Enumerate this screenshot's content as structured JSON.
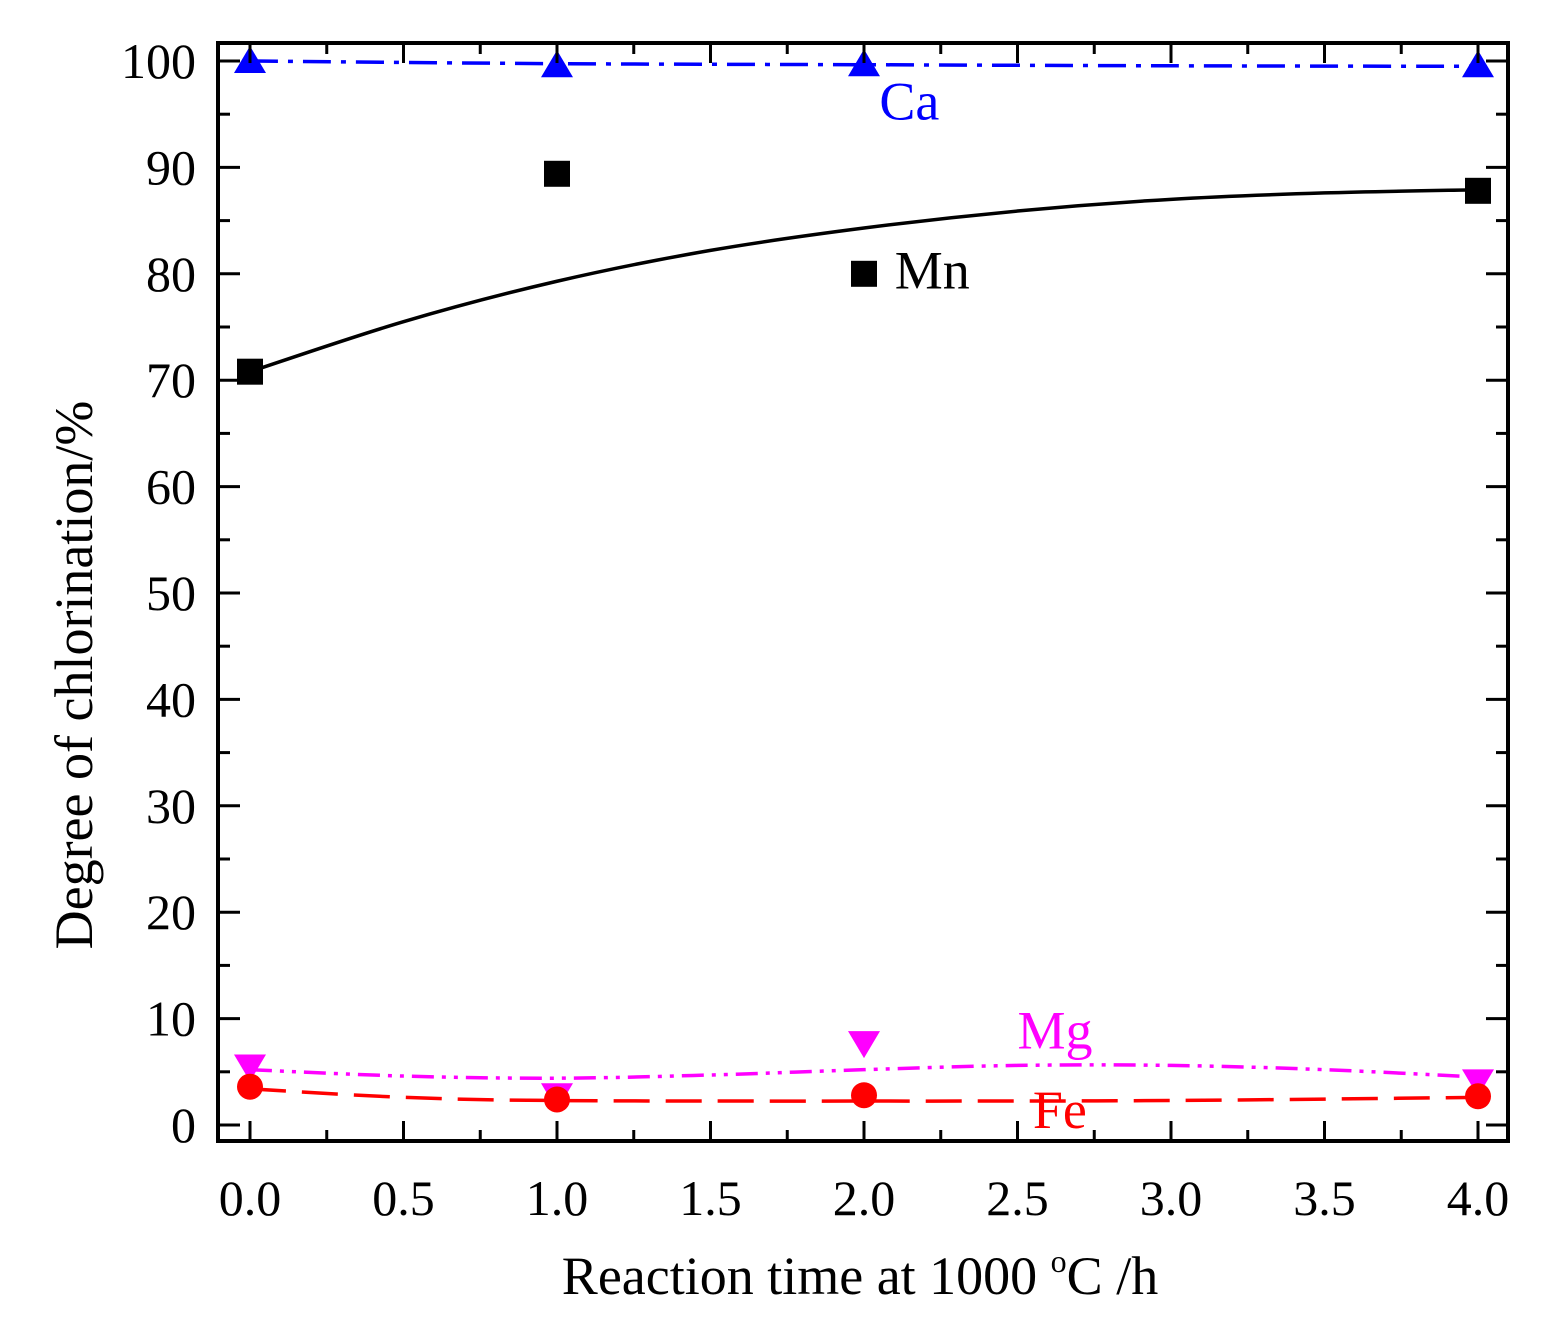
{
  "chart_data": {
    "type": "scatter",
    "title": "",
    "xlabel": "Reaction time at 1000 ",
    "xlabel_sup": "o",
    "xlabel_suffix": "C /h",
    "ylabel": "Degree of chlorination/%",
    "xlim": [
      -0.1,
      4.1
    ],
    "ylim": [
      0,
      100
    ],
    "x_ticks": [
      "0.0",
      "0.5",
      "1.0",
      "1.5",
      "2.0",
      "2.5",
      "3.0",
      "3.5",
      "4.0"
    ],
    "y_ticks": [
      "0",
      "10",
      "20",
      "30",
      "40",
      "50",
      "60",
      "70",
      "80",
      "90",
      "100"
    ],
    "grid": false,
    "series": [
      {
        "name": "Ca",
        "color": "#0000ff",
        "marker": "triangle-up",
        "line_style": "dash-dot",
        "x": [
          0,
          1,
          2,
          4
        ],
        "values": [
          100,
          99.6,
          99.7,
          99.6
        ],
        "fit": [
          [
            0,
            100
          ],
          [
            1,
            99.75
          ],
          [
            2,
            99.65
          ],
          [
            3,
            99.55
          ],
          [
            4,
            99.5
          ]
        ]
      },
      {
        "name": "Mn",
        "color": "#000000",
        "marker": "square",
        "line_style": "solid",
        "x": [
          0,
          1,
          2,
          4
        ],
        "values": [
          70.8,
          89.4,
          80.0,
          87.8
        ],
        "fit": [
          [
            0,
            70.8
          ],
          [
            0.5,
            75.5
          ],
          [
            1,
            79.3
          ],
          [
            1.5,
            82.2
          ],
          [
            2,
            84.3
          ],
          [
            2.5,
            85.9
          ],
          [
            3,
            87.0
          ],
          [
            3.5,
            87.6
          ],
          [
            4,
            87.9
          ]
        ]
      },
      {
        "name": "Mg",
        "color": "#ff00ff",
        "marker": "triangle-down",
        "line_style": "dash-dot-dot",
        "x": [
          0,
          1,
          2,
          4
        ],
        "values": [
          5.5,
          2.8,
          7.7,
          4.1
        ],
        "fit": [
          [
            0,
            5.2
          ],
          [
            0.5,
            4.6
          ],
          [
            1,
            4.4
          ],
          [
            1.5,
            4.7
          ],
          [
            2,
            5.2
          ],
          [
            2.5,
            5.6
          ],
          [
            3,
            5.6
          ],
          [
            3.5,
            5.2
          ],
          [
            4,
            4.5
          ]
        ]
      },
      {
        "name": "Fe",
        "color": "#ff0000",
        "marker": "circle",
        "line_style": "dashed",
        "x": [
          0,
          1,
          2,
          4
        ],
        "values": [
          3.6,
          2.4,
          2.8,
          2.7
        ],
        "fit": [
          [
            0,
            3.4
          ],
          [
            0.5,
            2.6
          ],
          [
            1,
            2.3
          ],
          [
            2,
            2.25
          ],
          [
            3,
            2.3
          ],
          [
            4,
            2.6
          ]
        ]
      }
    ],
    "annotations": [
      {
        "text": "Ca",
        "color": "#0000ff",
        "x": 2.05,
        "y": 96.2
      },
      {
        "text": "Mn",
        "color": "#000000",
        "x": 2.1,
        "y": 80.3
      },
      {
        "text": "Mg",
        "color": "#ff00ff",
        "x": 2.5,
        "y": 8.9
      },
      {
        "text": "Fe",
        "color": "#ff0000",
        "x": 2.55,
        "y": 1.4
      }
    ]
  }
}
